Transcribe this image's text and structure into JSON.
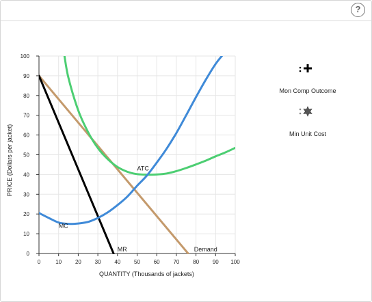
{
  "ui": {
    "help_label": "?"
  },
  "chart_data": {
    "type": "line",
    "title": "",
    "xlabel": "QUANTITY (Thousands of jackets)",
    "ylabel": "PRICE (Dollars per jacket)",
    "xlim": [
      0,
      100
    ],
    "ylim": [
      0,
      100
    ],
    "xticks": [
      0,
      10,
      20,
      30,
      40,
      50,
      60,
      70,
      80,
      90,
      100
    ],
    "yticks": [
      0,
      10,
      20,
      30,
      40,
      50,
      60,
      70,
      80,
      90,
      100
    ],
    "grid": true,
    "series": [
      {
        "name": "Demand",
        "color": "#c49a6c",
        "x": [
          0,
          76
        ],
        "y": [
          90,
          0
        ],
        "label_at": [
          79,
          1
        ]
      },
      {
        "name": "MR",
        "color": "#000000",
        "x": [
          0,
          38
        ],
        "y": [
          90,
          0
        ],
        "label_at": [
          40,
          1
        ]
      },
      {
        "name": "ATC",
        "color": "#4cce72",
        "x": [
          13,
          15,
          20,
          25,
          30,
          35,
          40,
          45,
          50,
          55,
          60,
          65,
          70,
          75,
          80,
          85,
          90,
          95,
          100
        ],
        "y": [
          100,
          89,
          72.5,
          61.5,
          53.4,
          47.8,
          43.8,
          41.4,
          40.2,
          39.9,
          40,
          40.5,
          41.7,
          43.3,
          45.1,
          47,
          49.2,
          51.2,
          53.5
        ],
        "label_at": [
          50,
          42
        ]
      },
      {
        "name": "MC",
        "color": "#3f8ad8",
        "x": [
          0,
          5,
          10,
          15,
          20,
          25,
          30,
          35,
          40,
          45,
          50,
          55,
          60,
          65,
          70,
          75,
          80,
          85,
          90,
          94
        ],
        "y": [
          20.5,
          18,
          15.7,
          15,
          15.2,
          16,
          18,
          20.8,
          24.5,
          28.8,
          34.3,
          39.5,
          46,
          53,
          61,
          70,
          79.2,
          88,
          96,
          101
        ],
        "label_at": [
          10,
          13
        ]
      }
    ],
    "legend": {
      "placement": "right",
      "items": [
        {
          "label": "Mon Comp Outcome",
          "marker": "plus-marker",
          "color": "#000000"
        },
        {
          "label": "Min Unit Cost",
          "marker": "star-marker",
          "color": "#7a7a7a"
        }
      ]
    }
  }
}
